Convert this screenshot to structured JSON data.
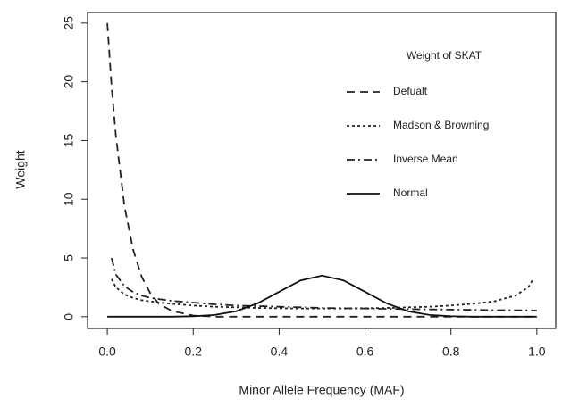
{
  "chart_data": {
    "type": "line",
    "x_label": "Minor Allele Frequency (MAF)",
    "y_label": "Weight",
    "legend_title": "Weight of SKAT",
    "legend_position": "upper right",
    "x": [
      0,
      0.01,
      0.02,
      0.04,
      0.06,
      0.08,
      0.1,
      0.12,
      0.15,
      0.2,
      0.25,
      0.3,
      0.35,
      0.4,
      0.45,
      0.5,
      0.55,
      0.6,
      0.65,
      0.7,
      0.75,
      0.8,
      0.85,
      0.9,
      0.95,
      0.98,
      0.99,
      1.0
    ],
    "series": [
      {
        "name": "Defualt",
        "color": "#222222",
        "line_style": "dashed",
        "values": [
          25,
          19.6,
          15.4,
          9.4,
          5.7,
          3.4,
          2.0,
          1.1,
          0.5,
          0.1,
          0,
          0,
          0,
          0,
          0,
          0,
          0,
          0,
          0,
          0,
          0,
          0,
          0,
          0,
          0,
          0,
          0,
          0
        ]
      },
      {
        "name": "Madson & Browning",
        "color": "#222222",
        "line_style": "dotted",
        "values": [
          null,
          3.2,
          2.5,
          1.9,
          1.6,
          1.4,
          1.3,
          1.2,
          1.1,
          0.95,
          0.85,
          0.8,
          0.75,
          0.72,
          0.7,
          0.7,
          0.7,
          0.72,
          0.75,
          0.8,
          0.85,
          0.95,
          1.1,
          1.3,
          1.8,
          2.5,
          3.1,
          null
        ]
      },
      {
        "name": "Inverse Mean",
        "color": "#222222",
        "line_style": "dashdot",
        "values": [
          null,
          5.0,
          3.6,
          2.6,
          2.1,
          1.8,
          1.6,
          1.5,
          1.35,
          1.2,
          1.05,
          0.95,
          0.9,
          0.85,
          0.8,
          0.75,
          0.72,
          0.7,
          0.67,
          0.65,
          0.62,
          0.6,
          0.58,
          0.56,
          0.55,
          0.54,
          0.53,
          0.52
        ]
      },
      {
        "name": "Normal",
        "color": "#111111",
        "line_style": "solid",
        "values": [
          0,
          0,
          0,
          0,
          0,
          0,
          0,
          0,
          0,
          0.04,
          0.15,
          0.47,
          1.14,
          2.12,
          3.09,
          3.5,
          3.09,
          2.12,
          1.14,
          0.47,
          0.15,
          0.04,
          0,
          0,
          0,
          0,
          0,
          0
        ]
      }
    ],
    "xlim": [
      -0.046,
      1.044
    ],
    "ylim": [
      -1,
      25.9
    ],
    "xticks": [
      {
        "value": 0,
        "label": "0.0"
      },
      {
        "value": 0.2,
        "label": "0.2"
      },
      {
        "value": 0.4,
        "label": "0.4"
      },
      {
        "value": 0.6,
        "label": "0.6"
      },
      {
        "value": 0.8,
        "label": "0.8"
      },
      {
        "value": 1,
        "label": "1.0"
      }
    ],
    "yticks": [
      0,
      5,
      10,
      15,
      20,
      25
    ],
    "grid": false
  }
}
